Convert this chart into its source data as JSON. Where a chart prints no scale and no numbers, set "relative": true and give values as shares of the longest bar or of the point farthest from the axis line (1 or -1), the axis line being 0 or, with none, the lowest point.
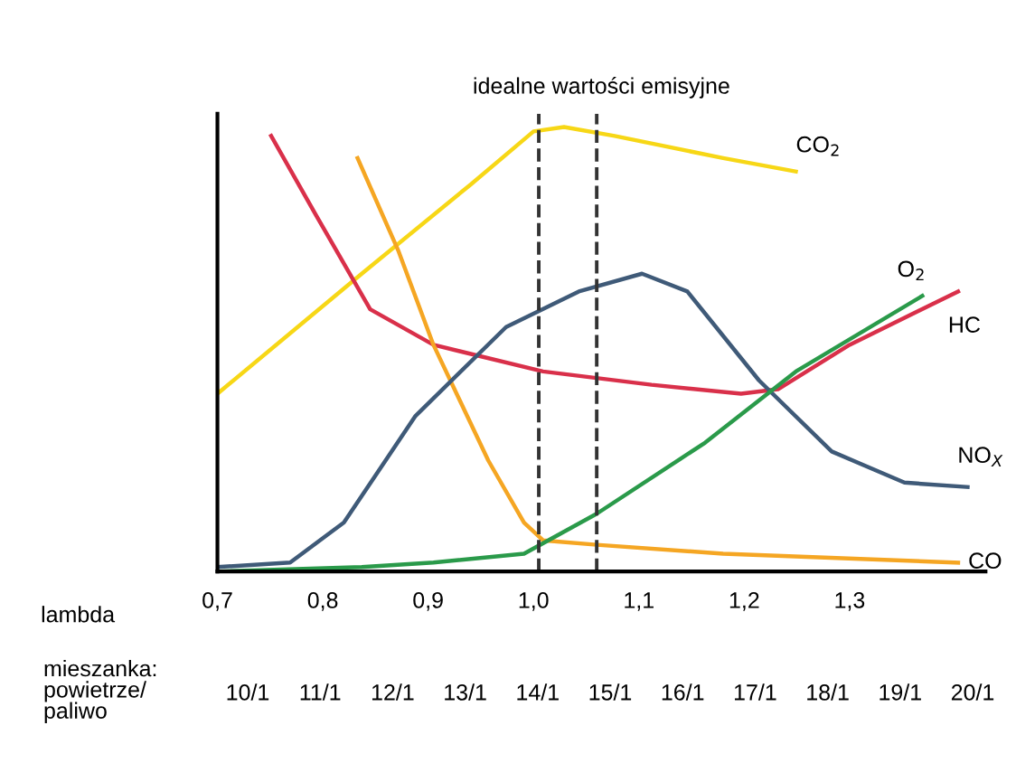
{
  "chart_data": {
    "type": "line",
    "title": "idealne wartości emisyjne",
    "relative": true,
    "xlabel": "lambda",
    "annotations": [
      "mieszanka:\npowietrze/\npaliwo",
      "10/1",
      "11/1",
      "12/1",
      "13/1",
      "14/1",
      "15/1",
      "16/1",
      "17/1",
      "18/1",
      "19/1",
      "20/1"
    ],
    "xlim": [
      0.7,
      1.429
    ],
    "xticks": [
      {
        "value": 0.7,
        "label": "0,7"
      },
      {
        "value": 0.8,
        "label": "0,8"
      },
      {
        "value": 0.9,
        "label": "0,9"
      },
      {
        "value": 1.0,
        "label": "1,0"
      },
      {
        "value": 1.1,
        "label": "1,1"
      },
      {
        "value": 1.2,
        "label": "1,2"
      },
      {
        "value": 1.3,
        "label": "1,3"
      }
    ],
    "ref_lines": [
      {
        "axis": "x",
        "value": 1.005,
        "color": "#333333",
        "line_style": "dashed"
      },
      {
        "axis": "x",
        "value": 1.06,
        "color": "#333333",
        "line_style": "dashed"
      }
    ],
    "grid": false,
    "legend": false,
    "line_style": "solid",
    "marker": "none",
    "series": [
      {
        "name": "CO$_{2}$",
        "color": "#f7d716",
        "x": [
          0.7,
          0.837,
          0.94,
          1.0,
          1.029,
          1.077,
          1.18,
          1.249
        ],
        "values": [
          0.4,
          0.67,
          0.87,
          0.99,
          1.0,
          0.98,
          0.93,
          0.9
        ]
      },
      {
        "name": "HC",
        "color": "#d9304a",
        "x": [
          0.751,
          0.794,
          0.845,
          0.905,
          1.009,
          1.112,
          1.197,
          1.232,
          1.3,
          1.403
        ],
        "values": [
          0.98,
          0.8,
          0.59,
          0.51,
          0.45,
          0.42,
          0.4,
          0.41,
          0.51,
          0.63
        ]
      },
      {
        "name": "CO",
        "color": "#f5a623",
        "x": [
          0.833,
          0.872,
          0.905,
          0.957,
          0.991,
          1.009,
          1.06,
          1.18,
          1.403
        ],
        "values": [
          0.93,
          0.72,
          0.51,
          0.25,
          0.11,
          0.07,
          0.06,
          0.04,
          0.02
        ]
      },
      {
        "name": "NO$_{X}$",
        "color": "#3f5a78",
        "x": [
          0.7,
          0.769,
          0.82,
          0.888,
          0.974,
          1.043,
          1.103,
          1.146,
          1.214,
          1.283,
          1.352,
          1.412
        ],
        "values": [
          0.01,
          0.02,
          0.11,
          0.35,
          0.55,
          0.63,
          0.67,
          0.63,
          0.43,
          0.27,
          0.2,
          0.19
        ]
      },
      {
        "name": "O$_{2}$",
        "color": "#2a9a4a",
        "x": [
          0.7,
          0.837,
          0.905,
          0.991,
          1.06,
          1.163,
          1.249,
          1.369
        ],
        "values": [
          0.0,
          0.01,
          0.02,
          0.04,
          0.13,
          0.29,
          0.45,
          0.62
        ]
      }
    ]
  }
}
